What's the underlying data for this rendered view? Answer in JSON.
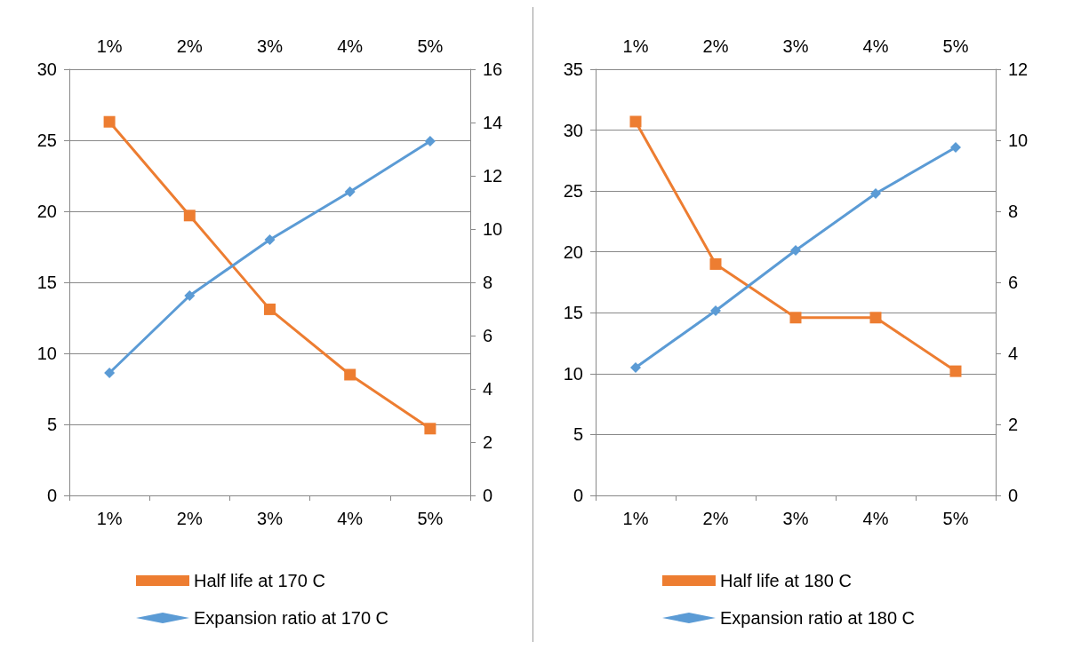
{
  "chart_data": [
    {
      "type": "line",
      "categories": [
        "1%",
        "2%",
        "3%",
        "4%",
        "5%"
      ],
      "ylim": [
        0,
        30
      ],
      "yticks": [
        0,
        5,
        10,
        15,
        20,
        25,
        30
      ],
      "y2lim": [
        0,
        16
      ],
      "y2ticks": [
        0,
        2,
        4,
        6,
        8,
        10,
        12,
        14,
        16
      ],
      "grid": "y",
      "legend": "bottom",
      "line_style": "solid",
      "series": [
        {
          "name": "Half life at 170 C",
          "color": "#ed7d31",
          "marker": "square",
          "values": [
            26.3,
            19.7,
            13.1,
            8.5,
            4.7
          ]
        },
        {
          "name": "Expansion ratio at 170 C",
          "color": "#5b9bd5",
          "marker": "diamond",
          "axis": "y2",
          "values": [
            4.6,
            7.5,
            9.6,
            11.4,
            13.3
          ]
        }
      ]
    },
    {
      "type": "line",
      "categories": [
        "1%",
        "2%",
        "3%",
        "4%",
        "5%"
      ],
      "ylim": [
        0,
        35
      ],
      "yticks": [
        0,
        5,
        10,
        15,
        20,
        25,
        30,
        35
      ],
      "y2lim": [
        0,
        12
      ],
      "y2ticks": [
        0,
        2,
        4,
        6,
        8,
        10,
        12
      ],
      "grid": "y",
      "legend": "bottom",
      "line_style": "solid",
      "series": [
        {
          "name": "Half life at 180 C",
          "color": "#ed7d31",
          "marker": "square",
          "values": [
            30.7,
            19.0,
            14.6,
            14.6,
            10.2
          ]
        },
        {
          "name": "Expansion ratio at 180 C",
          "color": "#5b9bd5",
          "marker": "diamond",
          "axis": "y2",
          "values": [
            3.6,
            5.2,
            6.9,
            8.5,
            9.8
          ]
        }
      ]
    }
  ]
}
